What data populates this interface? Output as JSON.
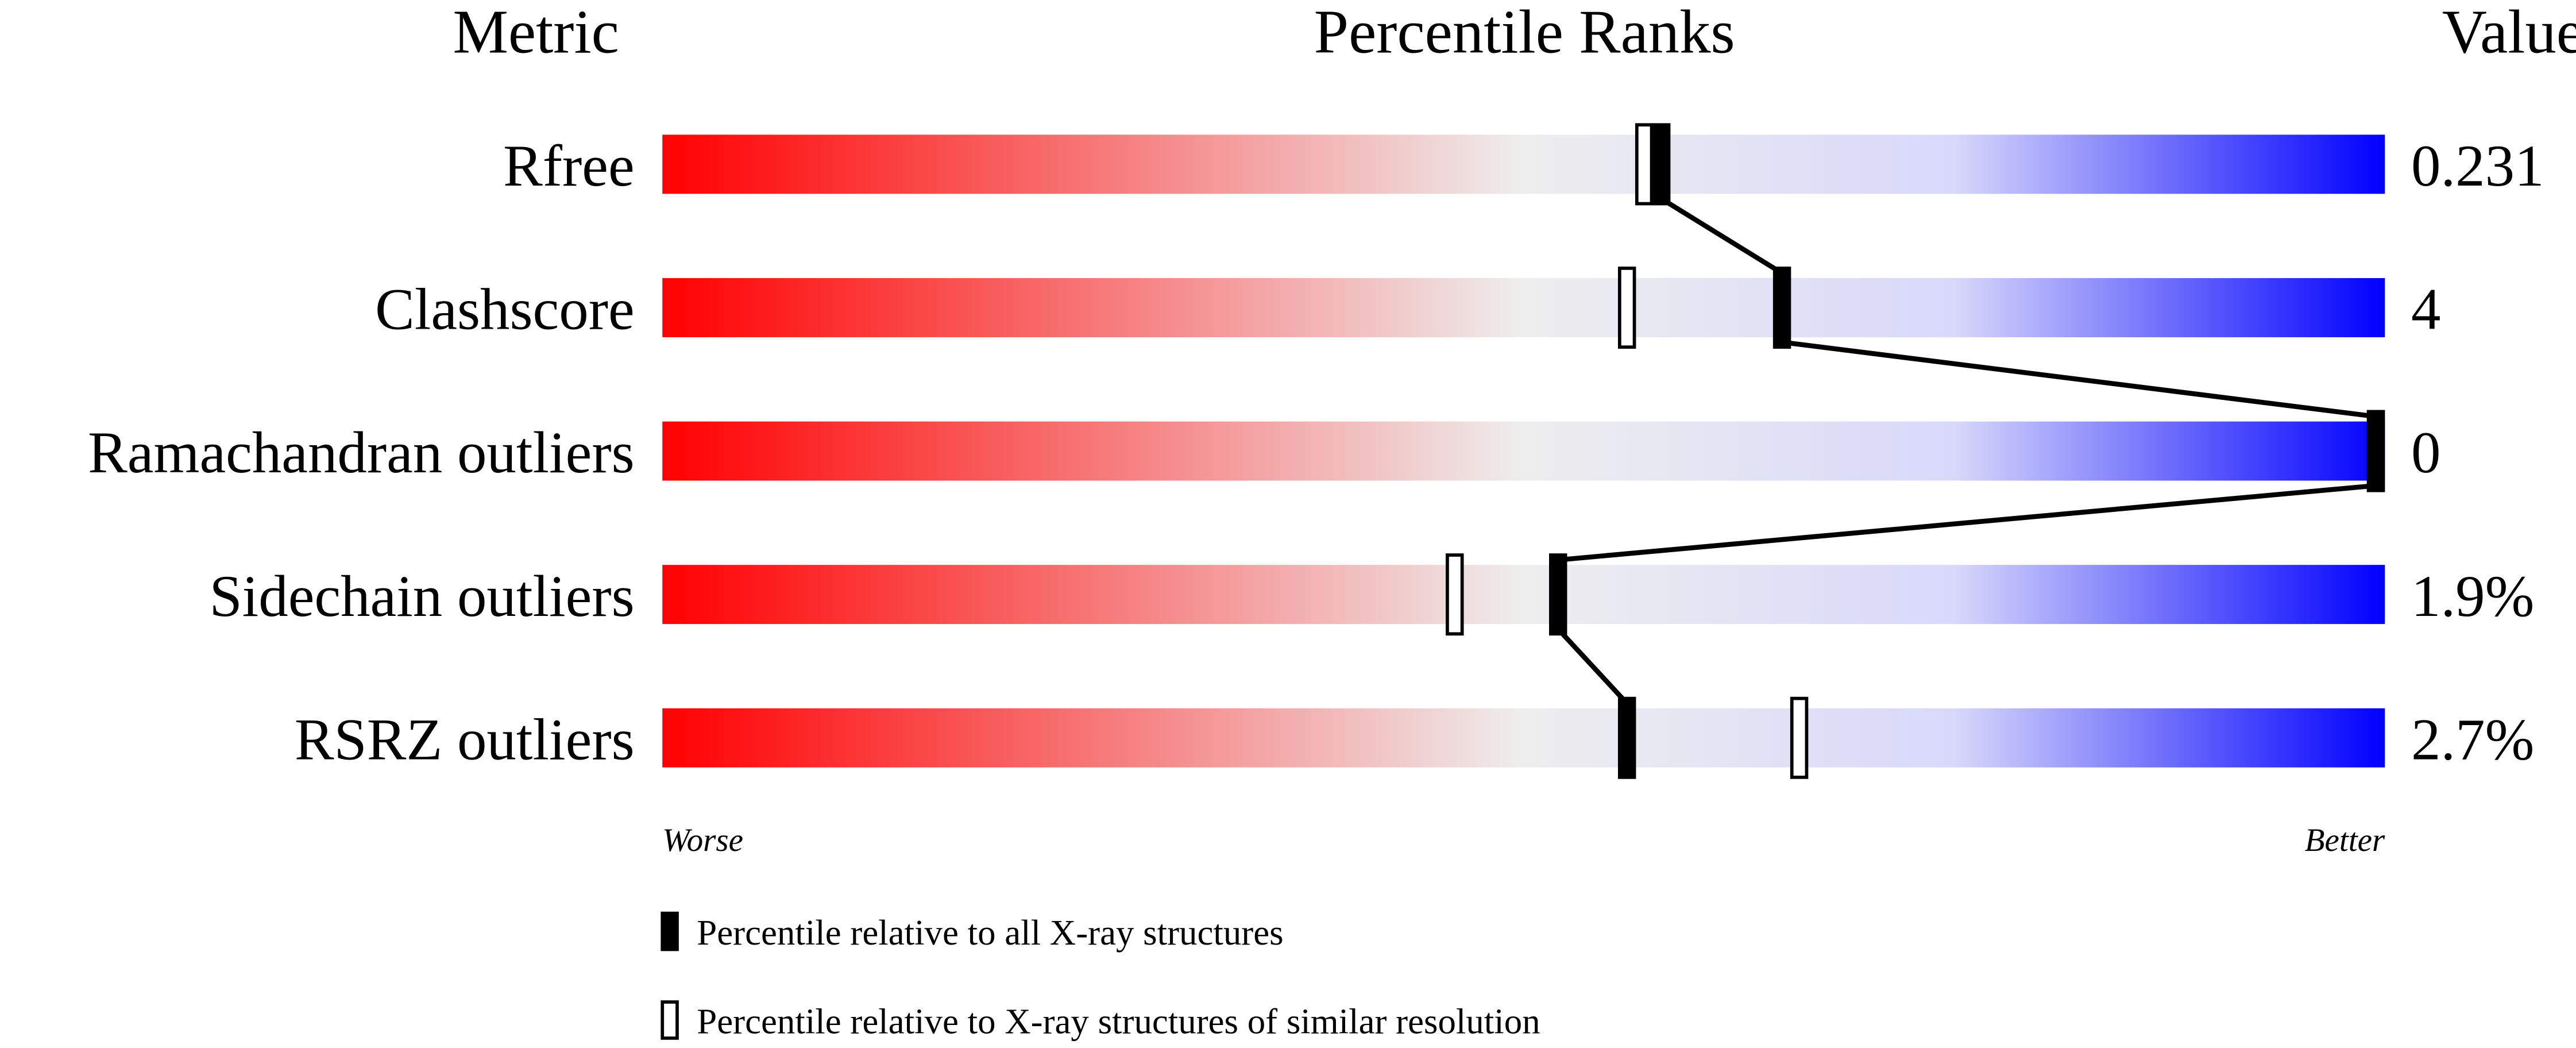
{
  "chart_data": {
    "type": "bar",
    "headers": {
      "metric": "Metric",
      "ranks": "Percentile Ranks",
      "value": "Value"
    },
    "xlim": [
      0,
      100
    ],
    "axis_labels": {
      "left": "Worse",
      "right": "Better"
    },
    "gradient_colors": [
      "#ff0000",
      "#eeeeee",
      "#0000ff"
    ],
    "metrics": [
      {
        "name": "Rfree",
        "value": "0.231",
        "percentile_all": 58,
        "percentile_similar": 57
      },
      {
        "name": "Clashscore",
        "value": "4",
        "percentile_all": 65,
        "percentile_similar": 56
      },
      {
        "name": "Ramachandran outliers",
        "value": "0",
        "percentile_all": 100,
        "percentile_similar": 100
      },
      {
        "name": "Sidechain outliers",
        "value": "1.9%",
        "percentile_all": 52,
        "percentile_similar": 46
      },
      {
        "name": "RSRZ outliers",
        "value": "2.7%",
        "percentile_all": 56,
        "percentile_similar": 66
      }
    ],
    "legend": {
      "all": "Percentile relative to all X-ray structures",
      "similar": "Percentile relative to X-ray structures of similar resolution"
    }
  }
}
